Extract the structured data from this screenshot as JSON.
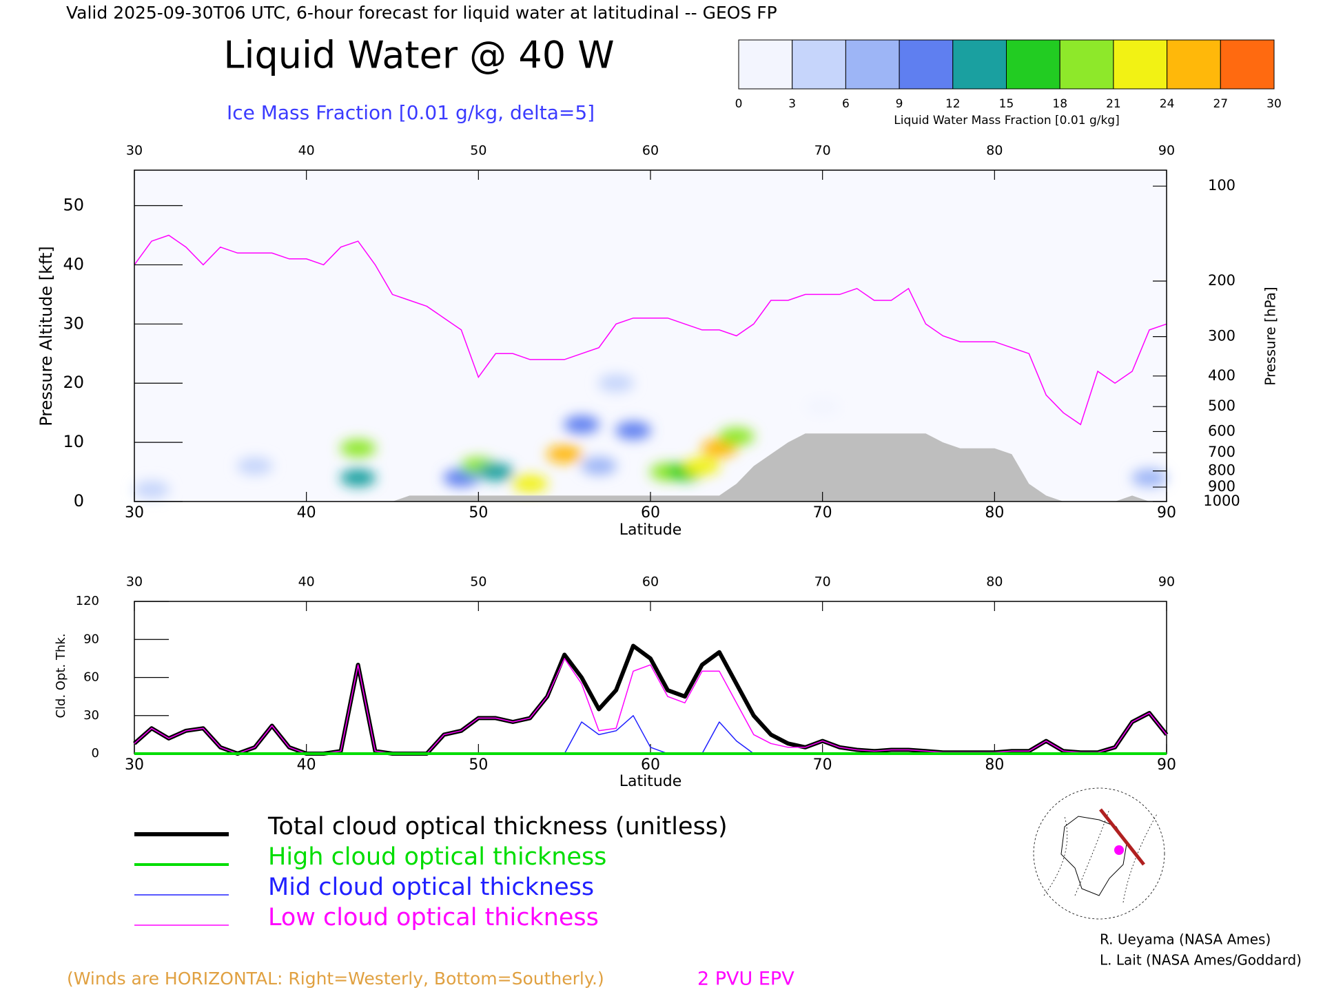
{
  "header": {
    "valid": "Valid 2025-09-30T06 UTC, 6-hour forecast for liquid water at latitudinal -- GEOS FP"
  },
  "chart_data": [
    {
      "type": "cross_section",
      "title": "Liquid Water @ 40 W",
      "subtitle": "Ice Mass Fraction [0.01 g/kg, delta=5]",
      "xlabel": "Latitude",
      "ylabel": "Pressure Altitude [kft]",
      "y2label": "Pressure [hPa]",
      "xlim": [
        30,
        90
      ],
      "xticks": [
        30,
        40,
        50,
        60,
        70,
        80,
        90
      ],
      "ylim": [
        0,
        56
      ],
      "yticks": [
        0,
        10,
        20,
        30,
        40,
        50
      ],
      "y2lim": [
        1000,
        89
      ],
      "y2ticks": [
        100,
        200,
        300,
        400,
        500,
        600,
        700,
        800,
        900,
        1000
      ],
      "y2log": true,
      "colorbar": {
        "label": "Liquid Water Mass Fraction [0.01 g/kg]",
        "ticks": [
          0,
          3,
          6,
          9,
          12,
          15,
          18,
          21,
          24,
          27,
          30
        ],
        "colors": [
          "#f3f5fe",
          "#c6d5fb",
          "#9db5f6",
          "#5f7ff0",
          "#1aa0a0",
          "#22cc22",
          "#8ee82a",
          "#f2f214",
          "#ffb80a",
          "#ff6a10"
        ]
      },
      "x": [
        30,
        31,
        32,
        33,
        34,
        35,
        36,
        37,
        38,
        39,
        40,
        41,
        42,
        43,
        44,
        45,
        46,
        47,
        48,
        49,
        50,
        51,
        52,
        53,
        54,
        55,
        56,
        57,
        58,
        59,
        60,
        61,
        62,
        63,
        64,
        65,
        66,
        67,
        68,
        69,
        70,
        71,
        72,
        73,
        74,
        75,
        76,
        77,
        78,
        79,
        80,
        81,
        82,
        83,
        84,
        85,
        86,
        87,
        88,
        89,
        90
      ],
      "series": [
        {
          "name": "2 PVU EPV",
          "color": "#ff00ff",
          "values": [
            40,
            44,
            45,
            43,
            40,
            43,
            42,
            42,
            42,
            41,
            41,
            40,
            43,
            44,
            40,
            35,
            34,
            33,
            31,
            29,
            21,
            25,
            25,
            24,
            24,
            24,
            25,
            26,
            30,
            31,
            31,
            31,
            30,
            29,
            29,
            28,
            30,
            34,
            34,
            35,
            35,
            35,
            36,
            34,
            34,
            36,
            30,
            28,
            27,
            27,
            27,
            26,
            25,
            18,
            15,
            13,
            22,
            20,
            22,
            29,
            30
          ]
        }
      ],
      "terrain": {
        "color": "#bebebe",
        "values": [
          0,
          0,
          0,
          0,
          0,
          0,
          0,
          0,
          0,
          0,
          0,
          0,
          0,
          0,
          0,
          0,
          1,
          1,
          1,
          1,
          1,
          1,
          1,
          1,
          1,
          1,
          1,
          1,
          1,
          1,
          1,
          1,
          1,
          1,
          1,
          3,
          6,
          8,
          10,
          11.5,
          11.5,
          11.5,
          11.5,
          11.5,
          11.5,
          11.5,
          11.5,
          10,
          9,
          9,
          9,
          8,
          3,
          1,
          0,
          0,
          0,
          0,
          1,
          0,
          0
        ]
      },
      "cloud_water": [
        {
          "x": 43,
          "y": 9,
          "value": 20
        },
        {
          "x": 43,
          "y": 4,
          "value": 12
        },
        {
          "x": 49,
          "y": 4,
          "value": 10
        },
        {
          "x": 50,
          "y": 6,
          "value": 18
        },
        {
          "x": 51,
          "y": 5,
          "value": 14
        },
        {
          "x": 53,
          "y": 3,
          "value": 22
        },
        {
          "x": 55,
          "y": 8,
          "value": 26
        },
        {
          "x": 56,
          "y": 13,
          "value": 10
        },
        {
          "x": 57,
          "y": 6,
          "value": 8
        },
        {
          "x": 59,
          "y": 12,
          "value": 9
        },
        {
          "x": 61,
          "y": 5,
          "value": 18
        },
        {
          "x": 62,
          "y": 5,
          "value": 16
        },
        {
          "x": 63,
          "y": 6,
          "value": 22
        },
        {
          "x": 64,
          "y": 9,
          "value": 24
        },
        {
          "x": 65,
          "y": 11,
          "value": 18
        },
        {
          "x": 31,
          "y": 2,
          "value": 3
        },
        {
          "x": 37,
          "y": 6,
          "value": 3
        },
        {
          "x": 89,
          "y": 4,
          "value": 6
        },
        {
          "x": 58,
          "y": 20,
          "value": 4
        },
        {
          "x": 70,
          "y": 16,
          "value": 2
        }
      ]
    },
    {
      "type": "line",
      "ylabel": "Cld. Opt. Thk.",
      "xlabel": "Latitude",
      "xlim": [
        30,
        90
      ],
      "xticks": [
        30,
        40,
        50,
        60,
        70,
        80,
        90
      ],
      "ylim": [
        0,
        120
      ],
      "yticks": [
        0,
        30,
        60,
        90,
        120
      ],
      "x": [
        30,
        31,
        32,
        33,
        34,
        35,
        36,
        37,
        38,
        39,
        40,
        41,
        42,
        43,
        44,
        45,
        46,
        47,
        48,
        49,
        50,
        51,
        52,
        53,
        54,
        55,
        56,
        57,
        58,
        59,
        60,
        61,
        62,
        63,
        64,
        65,
        66,
        67,
        68,
        69,
        70,
        71,
        72,
        73,
        74,
        75,
        76,
        77,
        78,
        79,
        80,
        81,
        82,
        83,
        84,
        85,
        86,
        87,
        88,
        89,
        90
      ],
      "series": [
        {
          "name": "Total cloud optical thickness (unitless)",
          "color": "#000000",
          "width": 6,
          "values": [
            8,
            20,
            12,
            18,
            20,
            5,
            0,
            5,
            22,
            5,
            0,
            0,
            2,
            70,
            2,
            0,
            0,
            0,
            15,
            18,
            28,
            28,
            25,
            28,
            45,
            78,
            60,
            35,
            50,
            85,
            75,
            50,
            45,
            70,
            80,
            55,
            30,
            15,
            8,
            5,
            10,
            5,
            3,
            2,
            3,
            3,
            2,
            1,
            1,
            1,
            1,
            2,
            2,
            10,
            2,
            1,
            1,
            5,
            25,
            32,
            15
          ]
        },
        {
          "name": "High cloud optical thickness",
          "color": "#00dd00",
          "width": 4,
          "values": [
            0,
            0,
            0,
            0,
            0,
            0,
            0,
            0,
            0,
            0,
            0,
            0,
            0,
            0,
            0,
            0,
            0,
            0,
            0,
            0,
            0,
            0,
            0,
            0,
            0,
            0,
            0,
            0,
            0,
            0,
            0,
            0,
            0,
            0,
            0,
            0,
            0,
            0,
            0,
            0,
            0,
            0,
            0,
            0,
            0,
            0,
            0,
            0,
            0,
            0,
            0,
            0,
            0,
            0,
            0,
            0,
            0,
            0,
            0,
            0,
            0
          ]
        },
        {
          "name": "Mid cloud optical thickness",
          "color": "#2020ff",
          "width": 1.5,
          "values": [
            0,
            0,
            0,
            0,
            0,
            0,
            0,
            0,
            0,
            0,
            0,
            0,
            0,
            0,
            0,
            0,
            0,
            0,
            0,
            0,
            0,
            0,
            0,
            0,
            0,
            0,
            25,
            15,
            18,
            30,
            5,
            0,
            0,
            0,
            25,
            10,
            0,
            0,
            0,
            0,
            0,
            0,
            0,
            0,
            0,
            0,
            0,
            0,
            0,
            0,
            0,
            0,
            0,
            0,
            0,
            0,
            0,
            0,
            0,
            0,
            0
          ]
        },
        {
          "name": "Low cloud optical thickness",
          "color": "#ff00ff",
          "width": 1.5,
          "values": [
            8,
            20,
            12,
            18,
            20,
            5,
            0,
            5,
            22,
            5,
            0,
            0,
            2,
            70,
            2,
            0,
            0,
            0,
            15,
            18,
            28,
            28,
            25,
            28,
            45,
            75,
            55,
            18,
            20,
            65,
            70,
            45,
            40,
            65,
            65,
            40,
            15,
            8,
            5,
            5,
            10,
            5,
            3,
            2,
            3,
            3,
            2,
            1,
            1,
            1,
            1,
            2,
            2,
            10,
            2,
            1,
            1,
            5,
            25,
            32,
            15
          ]
        }
      ]
    }
  ],
  "footer": {
    "winds": "(Winds are HORIZONTAL: Right=Westerly, Bottom=Southerly.)",
    "epv": "2 PVU EPV",
    "credit1": "R. Ueyama (NASA Ames)",
    "credit2": "L. Lait (NASA Ames/Goddard)"
  }
}
